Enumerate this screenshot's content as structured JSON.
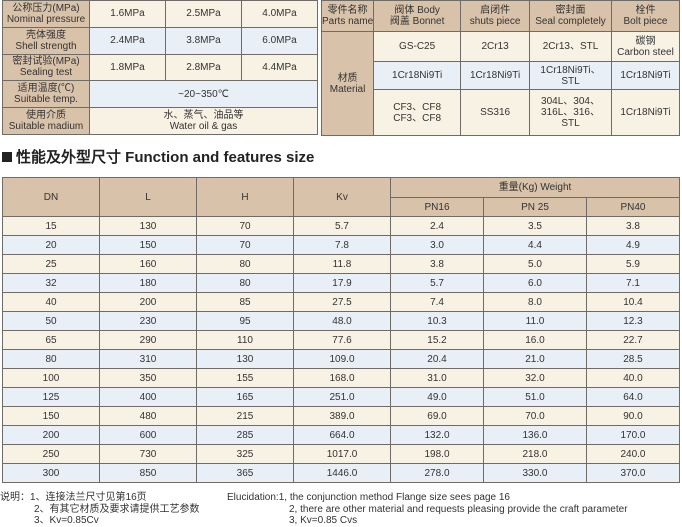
{
  "pressure_table": {
    "rows": [
      {
        "label_cn": "公称压力(MPa)",
        "label_en": "Nominal pressure",
        "values": [
          "1.6MPa",
          "2.5MPa",
          "4.0MPa"
        ]
      },
      {
        "label_cn": "壳体强度",
        "label_en": "Shell strength",
        "values": [
          "2.4MPa",
          "3.8MPa",
          "6.0MPa"
        ]
      },
      {
        "label_cn": "密封试验(MPa)",
        "label_en": "Sealing test",
        "values": [
          "1.8MPa",
          "2.8MPa",
          "4.4MPa"
        ]
      }
    ],
    "temp": {
      "label_cn": "适用温度(℃)",
      "label_en": "Suitable temp.",
      "value": "~20~350℃"
    },
    "medium": {
      "label_cn": "使用介质",
      "label_en": "Suitable madium",
      "value_cn": "水、蒸气、油品等",
      "value_en": "Water oil & gas"
    }
  },
  "material_table": {
    "headers": [
      {
        "cn": "零件名称",
        "en": "Parts name"
      },
      {
        "cn": "阀体 Body",
        "en": "阀盖 Bonnet"
      },
      {
        "cn": "启闭件",
        "en": "shuts piece"
      },
      {
        "cn": "密封面",
        "en": "Seal completely"
      },
      {
        "cn": "栓件",
        "en": "Bolt piece"
      }
    ],
    "material_label_cn": "材质",
    "material_label_en": "Material",
    "rows": [
      [
        "GS-C25",
        "2Cr13",
        "2Cr13、STL",
        "碳钢\nCarbon steel"
      ],
      [
        "1Cr18Ni9Ti",
        "1Cr18Ni9Ti",
        "1Cr18Ni9Ti、\nSTL",
        "1Cr18Ni9Ti"
      ],
      [
        "CF3、CF8\nCF3、CF8",
        "SS316",
        "304L、304、\n316L、316、\nSTL",
        "1Cr18Ni9Ti"
      ]
    ]
  },
  "section_title": "性能及外型尺寸 Function and features size",
  "size_table": {
    "headers": [
      "DN",
      "L",
      "H",
      "Kv"
    ],
    "weight_header": "重量(Kg) Weight",
    "weight_cols": [
      "PN16",
      "PN 25",
      "PN40"
    ],
    "rows": [
      [
        "15",
        "130",
        "70",
        "5.7",
        "2.4",
        "3.5",
        "3.8"
      ],
      [
        "20",
        "150",
        "70",
        "7.8",
        "3.0",
        "4.4",
        "4.9"
      ],
      [
        "25",
        "160",
        "80",
        "11.8",
        "3.8",
        "5.0",
        "5.9"
      ],
      [
        "32",
        "180",
        "80",
        "17.9",
        "5.7",
        "6.0",
        "7.1"
      ],
      [
        "40",
        "200",
        "85",
        "27.5",
        "7.4",
        "8.0",
        "10.4"
      ],
      [
        "50",
        "230",
        "95",
        "48.0",
        "10.3",
        "11.0",
        "12.3"
      ],
      [
        "65",
        "290",
        "110",
        "77.6",
        "15.2",
        "16.0",
        "22.7"
      ],
      [
        "80",
        "310",
        "130",
        "109.0",
        "20.4",
        "21.0",
        "28.5"
      ],
      [
        "100",
        "350",
        "155",
        "168.0",
        "31.0",
        "32.0",
        "40.0"
      ],
      [
        "125",
        "400",
        "165",
        "251.0",
        "49.0",
        "51.0",
        "64.0"
      ],
      [
        "150",
        "480",
        "215",
        "389.0",
        "69.0",
        "70.0",
        "90.0"
      ],
      [
        "200",
        "600",
        "285",
        "664.0",
        "132.0",
        "136.0",
        "170.0"
      ],
      [
        "250",
        "730",
        "325",
        "1017.0",
        "198.0",
        "218.0",
        "240.0"
      ],
      [
        "300",
        "850",
        "365",
        "1446.0",
        "278.0",
        "330.0",
        "370.0"
      ]
    ]
  },
  "notes_cn": [
    "说明：1、连接法兰尺寸见第16页",
    "2、有其它材质及要求请提供工艺参数",
    "3、Kv=0.85Cv"
  ],
  "notes_en": [
    "Elucidation:1, the conjunction method Flange size sees page 16",
    "2, there are other material and requests pleasing provide the craft parameter",
    "3, Kv=0.85 Cvs"
  ]
}
